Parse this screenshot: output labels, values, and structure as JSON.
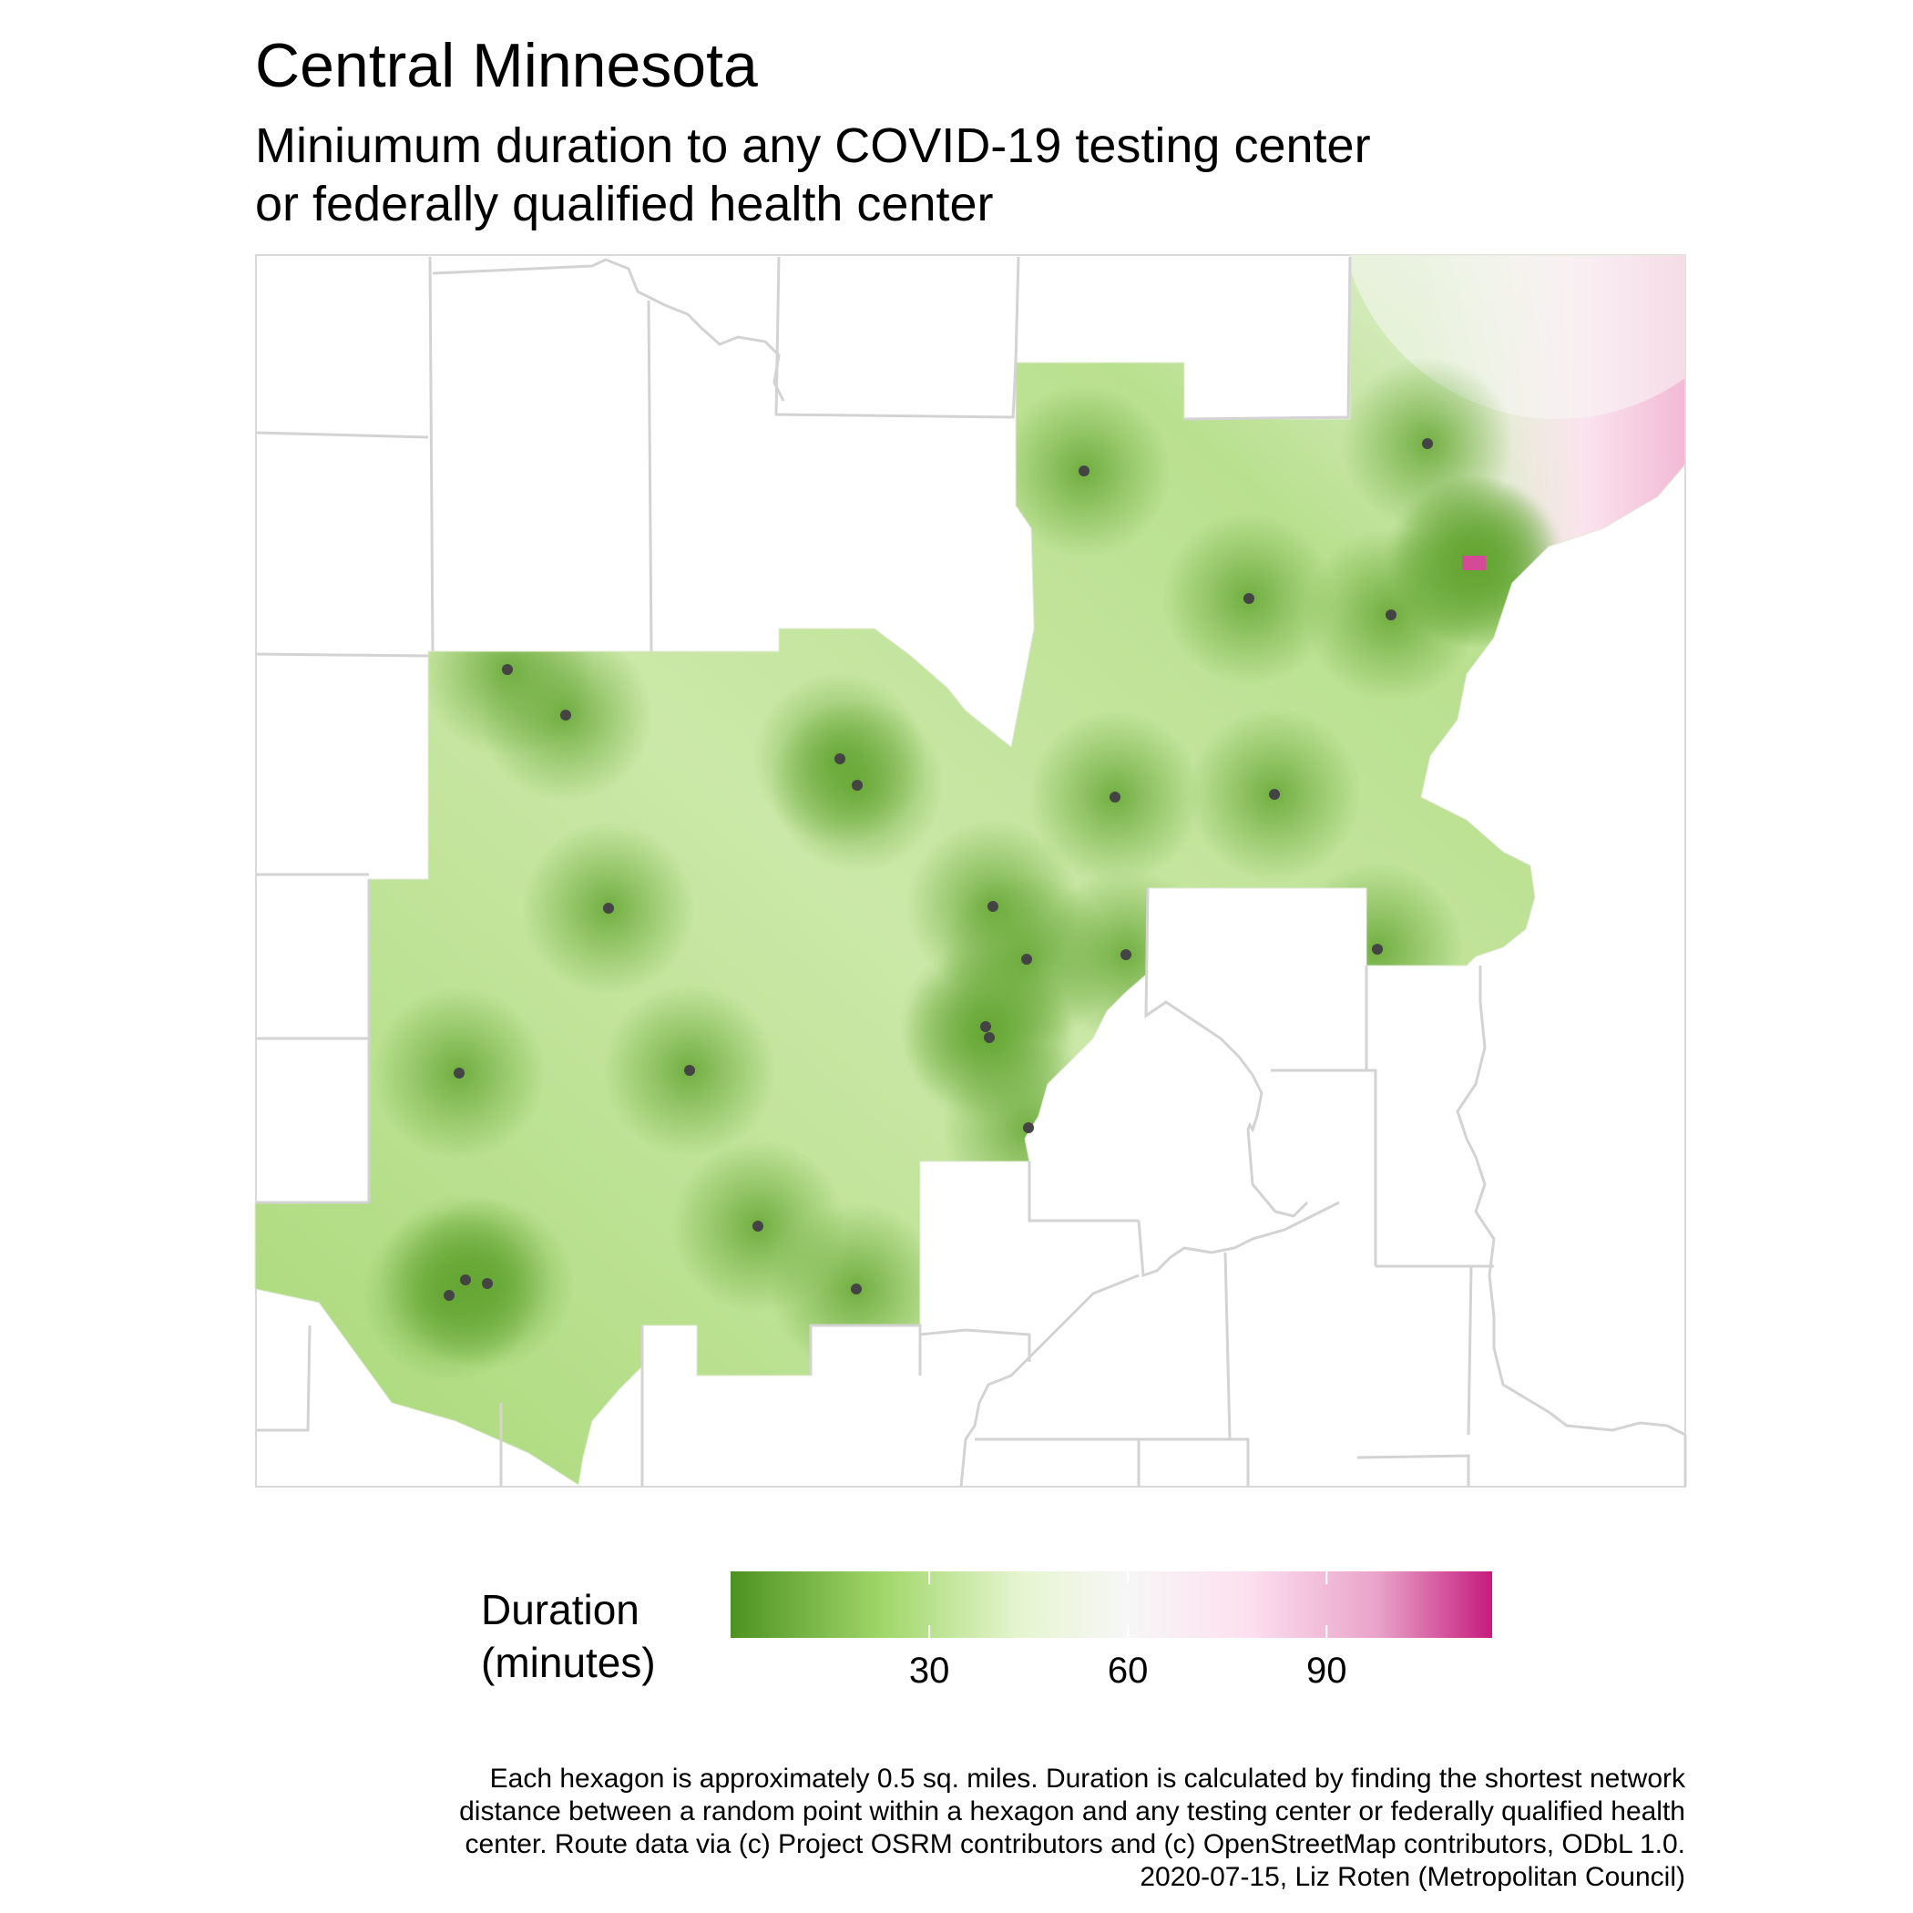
{
  "title": "Central Minnesota",
  "subtitle": "Miniumum duration to any COVID-19 testing center or federally qualified health center",
  "legend": {
    "title": "Duration (minutes)",
    "ticks": [
      "30",
      "60",
      "90"
    ],
    "tick_values": [
      30,
      60,
      90
    ],
    "range": [
      0,
      115
    ],
    "colors": [
      "#4d9221",
      "#a1d76a",
      "#e6f5d0",
      "#f7f7f7",
      "#fde0ef",
      "#e9a3c9",
      "#c51b7d"
    ]
  },
  "caption": "Each hexagon is approximately 0.5 sq. miles. Duration is calculated by finding the shortest network distance between a random point within a hexagon and any testing center or federally qualified health center. Route data via (c) Project OSRM contributors and (c) OpenStreetMap contributors, ODbL 1.0. 2020-07-15, Liz Roten (Metropolitan Council)",
  "map": {
    "facility_marker_color": "#444444",
    "boundary_color": "#d3d3d3",
    "facility_count": 28
  }
}
